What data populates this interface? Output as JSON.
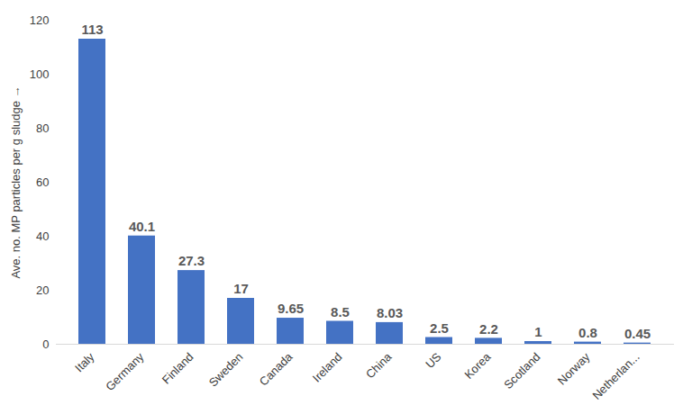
{
  "chart_data": {
    "type": "bar",
    "categories": [
      "Italy",
      "Germany",
      "Finland",
      "Sweden",
      "Canada",
      "Ireland",
      "China",
      "US",
      "Korea",
      "Scotland",
      "Norway",
      "Netherlan..."
    ],
    "values": [
      113,
      40.1,
      27.3,
      17,
      9.65,
      8.5,
      8.03,
      2.5,
      2.2,
      1,
      0.8,
      0.45
    ],
    "color": "#4472c4",
    "y_label": "Ave. no. MP particles per g sludge",
    "ylim": [
      0,
      120
    ],
    "yticks": [
      0,
      20,
      40,
      60,
      80,
      100,
      120
    ],
    "grid": false,
    "data_labels": true
  }
}
